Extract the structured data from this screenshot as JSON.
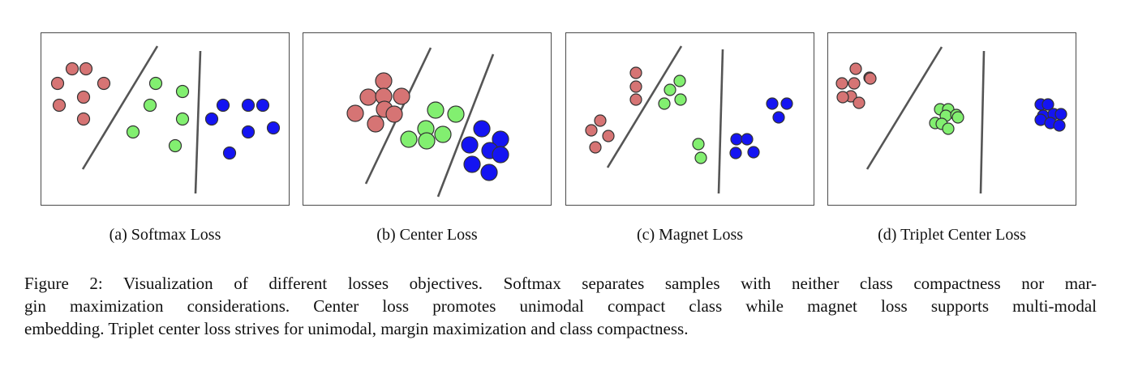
{
  "colors": {
    "red": "#d67474",
    "green": "#82ef70",
    "blue": "#1414f2",
    "stroke": "#333333",
    "line": "#555555"
  },
  "panels": [
    {
      "caption": "(a) Softmax Loss"
    },
    {
      "caption": "(b) Center Loss"
    },
    {
      "caption": "(c) Magnet Loss"
    },
    {
      "caption": "(d) Triplet Center Loss"
    }
  ],
  "figure_caption": {
    "lines": [
      "Figure 2: Visualization of different losses objectives. Softmax separates samples with neither class compactness nor mar-",
      "gin maximization considerations. Center loss promotes unimodal compact class while magnet loss supports multi-modal",
      "embedding. Triplet center loss strives for unimodal, margin maximization and class compactness."
    ]
  }
}
